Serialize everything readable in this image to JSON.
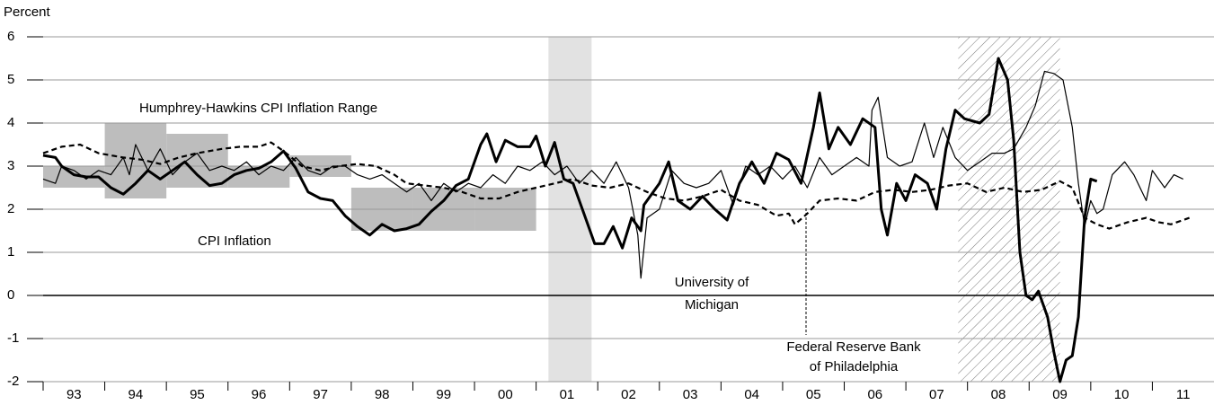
{
  "chart_data": {
    "type": "line",
    "y_axis_label": "Percent",
    "xlim": [
      1993,
      2012
    ],
    "ylim": [
      -2,
      6
    ],
    "yticks": [
      -2,
      -1,
      0,
      1,
      2,
      3,
      4,
      5,
      6
    ],
    "xticks": [
      {
        "value": 1993,
        "label": "93"
      },
      {
        "value": 1994,
        "label": "94"
      },
      {
        "value": 1995,
        "label": "95"
      },
      {
        "value": 1996,
        "label": "96"
      },
      {
        "value": 1997,
        "label": "97"
      },
      {
        "value": 1998,
        "label": "98"
      },
      {
        "value": 1999,
        "label": "99"
      },
      {
        "value": 2000,
        "label": "00"
      },
      {
        "value": 2001,
        "label": "01"
      },
      {
        "value": 2002,
        "label": "02"
      },
      {
        "value": 2003,
        "label": "03"
      },
      {
        "value": 2004,
        "label": "04"
      },
      {
        "value": 2005,
        "label": "05"
      },
      {
        "value": 2006,
        "label": "06"
      },
      {
        "value": 2007,
        "label": "07"
      },
      {
        "value": 2008,
        "label": "08"
      },
      {
        "value": 2009,
        "label": "09"
      },
      {
        "value": 2010,
        "label": "10"
      },
      {
        "value": 2011,
        "label": "11"
      }
    ],
    "grid": true,
    "hh_ranges": [
      {
        "xlim": [
          1993,
          1994
        ],
        "ylim": [
          2.5,
          3
        ]
      },
      {
        "xlim": [
          1994,
          1995
        ],
        "ylim": [
          2.25,
          4
        ]
      },
      {
        "xlim": [
          1995,
          1996
        ],
        "ylim": [
          2.5,
          3.75
        ]
      },
      {
        "xlim": [
          1996,
          1997
        ],
        "ylim": [
          2.5,
          3
        ]
      },
      {
        "xlim": [
          1997,
          1998
        ],
        "ylim": [
          2.75,
          3.25
        ]
      },
      {
        "xlim": [
          1998,
          1999
        ],
        "ylim": [
          1.5,
          2.5
        ]
      },
      {
        "xlim": [
          1999,
          2000
        ],
        "ylim": [
          1.5,
          2.5
        ]
      },
      {
        "xlim": [
          2000,
          2001
        ],
        "ylim": [
          1.5,
          2.5
        ]
      }
    ],
    "recession": [
      2001.2,
      2001.9
    ],
    "hatched_period": [
      2007.85,
      2009.5
    ],
    "annotations": {
      "hh_range": "Humphrey-Hawkins CPI Inflation Range",
      "cpi": "CPI Inflation",
      "michigan": [
        "University of",
        "Michigan"
      ],
      "philadelphia": [
        "Federal Reserve Bank",
        "of Philadelphia"
      ]
    },
    "series": [
      {
        "name": "CPI Inflation",
        "color": "#000000",
        "style": "thick",
        "x": [
          1993.0,
          1993.2,
          1993.3,
          1993.5,
          1993.7,
          1993.9,
          1994.1,
          1994.3,
          1994.5,
          1994.7,
          1994.9,
          1995.1,
          1995.3,
          1995.5,
          1995.7,
          1995.9,
          1996.1,
          1996.3,
          1996.5,
          1996.7,
          1996.9,
          1997.1,
          1997.3,
          1997.5,
          1997.7,
          1997.9,
          1998.1,
          1998.3,
          1998.5,
          1998.7,
          1998.9,
          1999.1,
          1999.3,
          1999.5,
          1999.7,
          1999.9,
          2000.1,
          2000.2,
          2000.35,
          2000.5,
          2000.7,
          2000.9,
          2001.0,
          2001.15,
          2001.3,
          2001.45,
          2001.6,
          2001.75,
          2001.95,
          2002.1,
          2002.25,
          2002.4,
          2002.55,
          2002.7,
          2002.75,
          2003.0,
          2003.15,
          2003.3,
          2003.5,
          2003.7,
          2003.9,
          2004.1,
          2004.3,
          2004.5,
          2004.7,
          2004.9,
          2005.1,
          2005.3,
          2005.5,
          2005.6,
          2005.75,
          2005.9,
          2006.1,
          2006.3,
          2006.5,
          2006.6,
          2006.7,
          2006.85,
          2007.0,
          2007.15,
          2007.35,
          2007.5,
          2007.65,
          2007.8,
          2007.95,
          2008.2,
          2008.35,
          2008.5,
          2008.65,
          2008.75,
          2008.85,
          2008.95,
          2009.05,
          2009.15,
          2009.3,
          2009.4,
          2009.5,
          2009.6,
          2009.7,
          2009.8,
          2009.9,
          2010.0,
          2010.1
        ],
        "values": [
          3.25,
          3.2,
          3.0,
          2.8,
          2.75,
          2.75,
          2.5,
          2.35,
          2.6,
          2.9,
          2.7,
          2.9,
          3.1,
          2.8,
          2.55,
          2.6,
          2.8,
          2.9,
          2.95,
          3.1,
          3.35,
          2.95,
          2.4,
          2.25,
          2.2,
          1.85,
          1.6,
          1.4,
          1.65,
          1.5,
          1.55,
          1.65,
          1.95,
          2.2,
          2.55,
          2.7,
          3.5,
          3.75,
          3.1,
          3.6,
          3.45,
          3.45,
          3.7,
          3.0,
          3.55,
          2.7,
          2.6,
          2.0,
          1.2,
          1.2,
          1.6,
          1.1,
          1.8,
          1.5,
          2.1,
          2.6,
          3.1,
          2.2,
          2.0,
          2.3,
          2.0,
          1.75,
          2.6,
          3.1,
          2.6,
          3.3,
          3.15,
          2.6,
          3.9,
          4.7,
          3.4,
          3.9,
          3.5,
          4.1,
          3.9,
          2.0,
          1.4,
          2.6,
          2.2,
          2.8,
          2.6,
          2.0,
          3.4,
          4.3,
          4.1,
          4.0,
          4.2,
          5.5,
          5.0,
          3.6,
          1.0,
          0.0,
          -0.1,
          0.1,
          -0.5,
          -1.3,
          -2.0,
          -1.5,
          -1.4,
          -0.5,
          1.8,
          2.7,
          2.65
        ]
      },
      {
        "name": "University of Michigan",
        "color": "#000000",
        "style": "thin",
        "x": [
          1993.0,
          1993.2,
          1993.3,
          1993.5,
          1993.7,
          1993.9,
          1994.1,
          1994.3,
          1994.4,
          1994.5,
          1994.7,
          1994.9,
          1995.1,
          1995.3,
          1995.5,
          1995.7,
          1995.9,
          1996.1,
          1996.3,
          1996.5,
          1996.7,
          1996.9,
          1997.1,
          1997.3,
          1997.5,
          1997.7,
          1997.9,
          1998.1,
          1998.3,
          1998.5,
          1998.7,
          1998.9,
          1999.1,
          1999.3,
          1999.5,
          1999.7,
          1999.9,
          2000.1,
          2000.3,
          2000.5,
          2000.7,
          2000.9,
          2001.1,
          2001.3,
          2001.5,
          2001.7,
          2001.9,
          2002.1,
          2002.3,
          2002.5,
          2002.65,
          2002.7,
          2002.8,
          2003.0,
          2003.2,
          2003.4,
          2003.6,
          2003.8,
          2004.0,
          2004.2,
          2004.4,
          2004.6,
          2004.8,
          2005.0,
          2005.2,
          2005.4,
          2005.6,
          2005.8,
          2006.0,
          2006.2,
          2006.4,
          2006.45,
          2006.55,
          2006.7,
          2006.9,
          2007.1,
          2007.3,
          2007.45,
          2007.6,
          2007.8,
          2008.0,
          2008.2,
          2008.4,
          2008.6,
          2008.75,
          2008.95,
          2009.1,
          2009.25,
          2009.4,
          2009.55,
          2009.7,
          2009.8,
          2009.9,
          2010.0,
          2010.1,
          2010.2,
          2010.35,
          2010.55,
          2010.7,
          2010.9,
          2011.0,
          2011.2,
          2011.35,
          2011.5
        ],
        "values": [
          2.7,
          2.6,
          3.0,
          2.9,
          2.7,
          2.9,
          2.8,
          3.2,
          2.8,
          3.5,
          2.9,
          3.4,
          2.8,
          3.1,
          3.3,
          2.9,
          3.0,
          2.9,
          3.1,
          2.8,
          3.0,
          2.9,
          3.2,
          2.9,
          2.8,
          3.0,
          3.0,
          2.8,
          2.7,
          2.8,
          2.6,
          2.4,
          2.6,
          2.2,
          2.6,
          2.4,
          2.6,
          2.5,
          2.8,
          2.6,
          3.0,
          2.9,
          3.1,
          2.8,
          3.0,
          2.6,
          2.9,
          2.6,
          3.1,
          2.5,
          1.4,
          0.4,
          1.8,
          2.0,
          2.9,
          2.6,
          2.5,
          2.6,
          2.9,
          2.1,
          3.0,
          2.8,
          3.0,
          2.7,
          3.0,
          2.5,
          3.2,
          2.8,
          3.0,
          3.2,
          3.0,
          4.3,
          4.6,
          3.2,
          3.0,
          3.1,
          4.0,
          3.2,
          3.9,
          3.2,
          2.9,
          3.1,
          3.3,
          3.3,
          3.4,
          3.9,
          4.4,
          5.2,
          5.15,
          5.0,
          3.9,
          2.6,
          1.6,
          2.2,
          1.9,
          2.0,
          2.8,
          3.1,
          2.8,
          2.2,
          2.9,
          2.5,
          2.8,
          2.7
        ]
      },
      {
        "name": "Federal Reserve Bank of Philadelphia",
        "color": "#000000",
        "style": "dashed",
        "x": [
          1993.0,
          1993.3,
          1993.6,
          1993.9,
          1994.3,
          1994.6,
          1994.9,
          1995.2,
          1995.5,
          1995.9,
          1996.2,
          1996.5,
          1996.7,
          1996.9,
          1997.2,
          1997.5,
          1997.8,
          1998.1,
          1998.4,
          1998.7,
          1998.9,
          1999.2,
          1999.5,
          1999.8,
          2000.1,
          2000.4,
          2000.7,
          2001.0,
          2001.3,
          2001.6,
          2001.9,
          2002.2,
          2002.5,
          2002.8,
          2003.1,
          2003.4,
          2003.7,
          2004.0,
          2004.3,
          2004.6,
          2004.9,
          2005.1,
          2005.2,
          2005.4,
          2005.6,
          2005.9,
          2006.2,
          2006.5,
          2006.8,
          2007.1,
          2007.4,
          2007.7,
          2008.0,
          2008.3,
          2008.6,
          2008.9,
          2009.2,
          2009.5,
          2009.7,
          2009.9,
          2010.1,
          2010.3,
          2010.6,
          2010.9,
          2011.1,
          2011.3,
          2011.6
        ],
        "values": [
          3.3,
          3.45,
          3.5,
          3.3,
          3.2,
          3.15,
          3.05,
          3.2,
          3.3,
          3.4,
          3.45,
          3.45,
          3.55,
          3.35,
          3.0,
          2.9,
          3.0,
          3.05,
          3.0,
          2.8,
          2.6,
          2.55,
          2.5,
          2.4,
          2.25,
          2.25,
          2.4,
          2.5,
          2.6,
          2.7,
          2.55,
          2.5,
          2.6,
          2.4,
          2.25,
          2.2,
          2.3,
          2.45,
          2.2,
          2.1,
          1.85,
          1.9,
          1.65,
          1.9,
          2.2,
          2.25,
          2.2,
          2.4,
          2.45,
          2.4,
          2.45,
          2.55,
          2.6,
          2.4,
          2.5,
          2.4,
          2.45,
          2.65,
          2.5,
          1.8,
          1.65,
          1.55,
          1.7,
          1.8,
          1.7,
          1.65,
          1.8
        ]
      }
    ]
  }
}
